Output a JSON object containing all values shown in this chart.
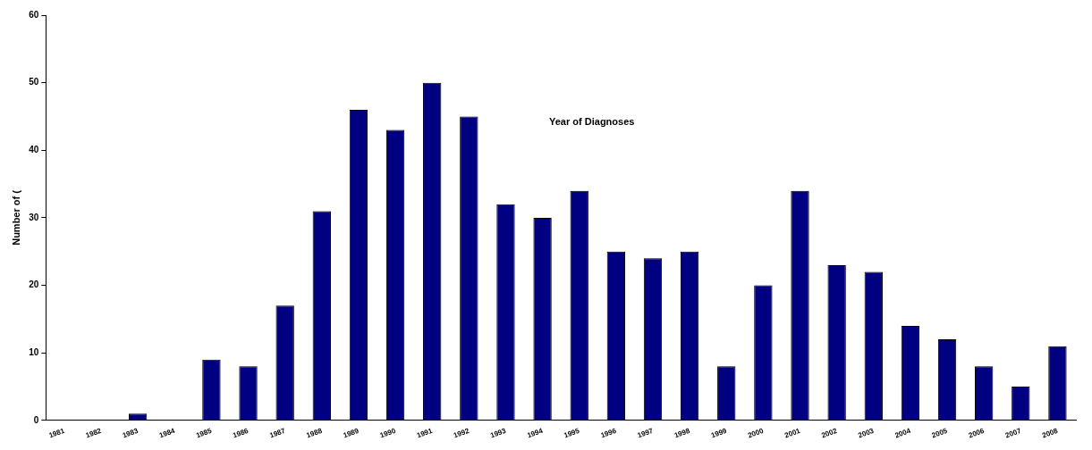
{
  "chart_data": {
    "type": "bar",
    "ylabel": "Number of (",
    "annotations": [
      "Year of Diagnoses"
    ],
    "categories": [
      "1981",
      "1982",
      "1983",
      "1984",
      "1985",
      "1986",
      "1987",
      "1988",
      "1989",
      "1990",
      "1991",
      "1992",
      "1993",
      "1994",
      "1995",
      "1996",
      "1997",
      "1998",
      "1999",
      "2000",
      "2001",
      "2002",
      "2003",
      "2004",
      "2005",
      "2006",
      "2007",
      "2008"
    ],
    "values": [
      0,
      0,
      1,
      0,
      9,
      8,
      17,
      31,
      46,
      43,
      50,
      45,
      32,
      30,
      34,
      25,
      24,
      25,
      8,
      20,
      34,
      23,
      22,
      14,
      12,
      8,
      5,
      11
    ],
    "color": "#000080",
    "ylim": [
      0,
      60
    ],
    "yticks": [
      0,
      10,
      20,
      30,
      40,
      50,
      60
    ],
    "grid": false,
    "legend": false
  }
}
